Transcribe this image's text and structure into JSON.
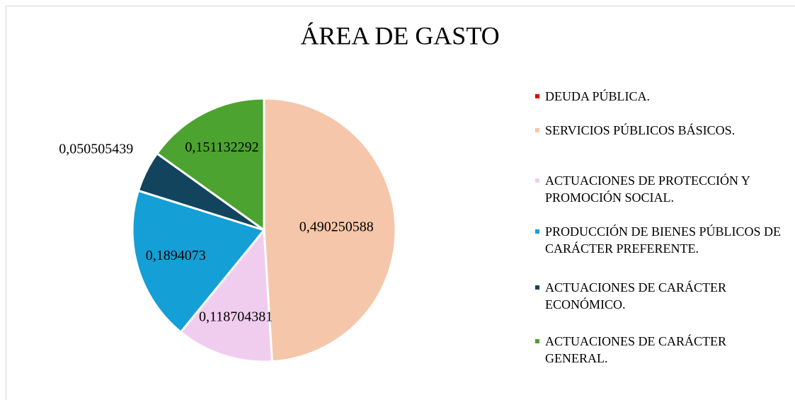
{
  "chart_data": {
    "type": "pie",
    "title": "ÁREA DE GASTO",
    "categories": [
      "DEUDA PÚBLICA.",
      "SERVICIOS PÚBLICOS BÁSICOS.",
      "ACTUACIONES DE PROTECCIÓN Y PROMOCIÓN SOCIAL.",
      "PRODUCCIÓN DE BIENES PÚBLICOS DE CARÁCTER PREFERENTE.",
      "ACTUACIONES DE CARÁCTER ECONÓMICO.",
      "ACTUACIONES DE CARÁCTER GENERAL."
    ],
    "values": [
      0,
      0.490250588,
      0.118704381,
      0.1894073,
      0.050505439,
      0.151132292
    ],
    "value_labels": [
      null,
      "0,490250588",
      "0,118704381",
      "0,1894073",
      "0,050505439",
      "0,151132292"
    ],
    "colors": [
      "#e00000",
      "#f5c6a9",
      "#f0cdee",
      "#149fd6",
      "#12445e",
      "#4ca32f"
    ],
    "legend": "right"
  }
}
